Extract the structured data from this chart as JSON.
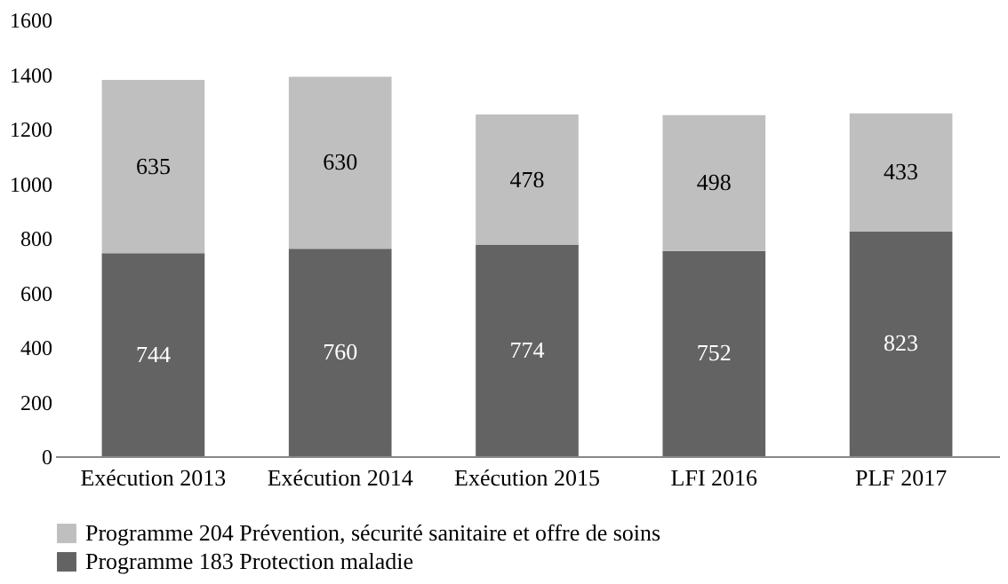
{
  "chart_data": {
    "type": "bar",
    "stacked": true,
    "categories": [
      "Exécution 2013",
      "Exécution 2014",
      "Exécution 2015",
      "LFI 2016",
      "PLF 2017"
    ],
    "series": [
      {
        "name": "Programme 183 Protection maladie",
        "color": "#636363",
        "values": [
          744,
          760,
          774,
          752,
          823
        ]
      },
      {
        "name": "Programme 204 Prévention, sécurité sanitaire et offre de soins",
        "color": "#bfbfbf",
        "values": [
          635,
          630,
          478,
          498,
          433
        ]
      }
    ],
    "ylim": [
      0,
      1600
    ],
    "yticks": [
      0,
      200,
      400,
      600,
      800,
      1000,
      1200,
      1400,
      1600
    ],
    "grid": false,
    "legend": "bottom",
    "data_labels": true
  }
}
